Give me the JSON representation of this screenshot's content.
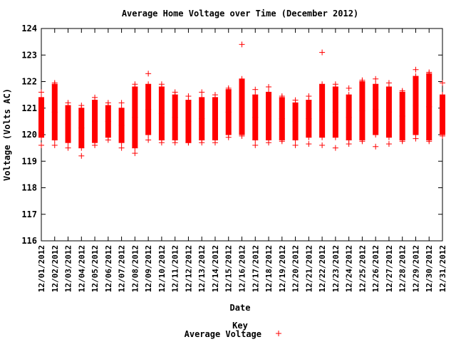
{
  "chart_data": {
    "type": "scatter",
    "title": "Average Home Voltage over Time (December 2012)",
    "xlabel": "Date",
    "ylabel": "Voltage (Volts AC)",
    "ylim": [
      116,
      124
    ],
    "yticks": [
      116,
      117,
      118,
      119,
      120,
      121,
      122,
      123,
      124
    ],
    "grid": false,
    "legend": {
      "title": "Key",
      "position": "bottom-center"
    },
    "categories": [
      "12/01/2012",
      "12/02/2012",
      "12/03/2012",
      "12/04/2012",
      "12/05/2012",
      "12/06/2012",
      "12/07/2012",
      "12/08/2012",
      "12/09/2012",
      "12/10/2012",
      "12/11/2012",
      "12/12/2012",
      "12/13/2012",
      "12/14/2012",
      "12/15/2012",
      "12/16/2012",
      "12/17/2012",
      "12/18/2012",
      "12/19/2012",
      "12/20/2012",
      "12/21/2012",
      "12/22/2012",
      "12/23/2012",
      "12/24/2012",
      "12/25/2012",
      "12/26/2012",
      "12/27/2012",
      "12/28/2012",
      "12/29/2012",
      "12/30/2012",
      "12/31/2012"
    ],
    "series": [
      {
        "name": "Average Voltage",
        "color": "#ff0000",
        "marker": "plus",
        "ranges": [
          [
            119.9,
            121.4
          ],
          [
            119.8,
            121.9
          ],
          [
            119.7,
            121.1
          ],
          [
            119.5,
            121.0
          ],
          [
            119.7,
            121.3
          ],
          [
            119.9,
            121.1
          ],
          [
            119.7,
            121.0
          ],
          [
            119.5,
            121.8
          ],
          [
            120.0,
            121.9
          ],
          [
            119.8,
            121.8
          ],
          [
            119.8,
            121.5
          ],
          [
            119.7,
            121.3
          ],
          [
            119.8,
            121.4
          ],
          [
            119.8,
            121.4
          ],
          [
            120.0,
            121.7
          ],
          [
            120.0,
            122.1
          ],
          [
            119.8,
            121.5
          ],
          [
            119.8,
            121.6
          ],
          [
            119.8,
            121.4
          ],
          [
            119.8,
            121.2
          ],
          [
            119.9,
            121.3
          ],
          [
            119.9,
            121.9
          ],
          [
            119.9,
            121.8
          ],
          [
            119.8,
            121.5
          ],
          [
            119.8,
            122.0
          ],
          [
            120.0,
            121.9
          ],
          [
            119.9,
            121.8
          ],
          [
            119.8,
            121.6
          ],
          [
            120.0,
            122.2
          ],
          [
            119.8,
            122.3
          ],
          [
            120.0,
            121.5
          ]
        ],
        "outliers": [
          [
            119.6,
            121.6
          ],
          [
            119.6,
            121.95
          ],
          [
            119.5,
            121.2
          ],
          [
            119.2,
            121.1
          ],
          [
            119.6,
            121.4
          ],
          [
            119.8,
            121.2
          ],
          [
            119.5,
            121.2
          ],
          [
            119.3,
            121.9
          ],
          [
            119.8,
            122.3
          ],
          [
            119.7,
            121.9
          ],
          [
            119.7,
            121.6
          ],
          [
            119.7,
            121.45
          ],
          [
            119.7,
            121.6
          ],
          [
            119.7,
            121.5
          ],
          [
            119.9,
            121.75
          ],
          [
            119.95,
            123.4
          ],
          [
            119.6,
            121.7
          ],
          [
            119.7,
            121.8
          ],
          [
            119.75,
            121.45
          ],
          [
            119.6,
            121.3
          ],
          [
            119.65,
            121.45
          ],
          [
            119.6,
            123.1
          ],
          [
            119.5,
            121.9
          ],
          [
            119.65,
            121.75
          ],
          [
            119.75,
            122.05
          ],
          [
            119.55,
            122.1
          ],
          [
            119.65,
            121.95
          ],
          [
            119.75,
            121.65
          ],
          [
            119.85,
            122.45
          ],
          [
            119.75,
            122.35
          ],
          [
            119.95,
            121.95
          ]
        ]
      }
    ]
  }
}
